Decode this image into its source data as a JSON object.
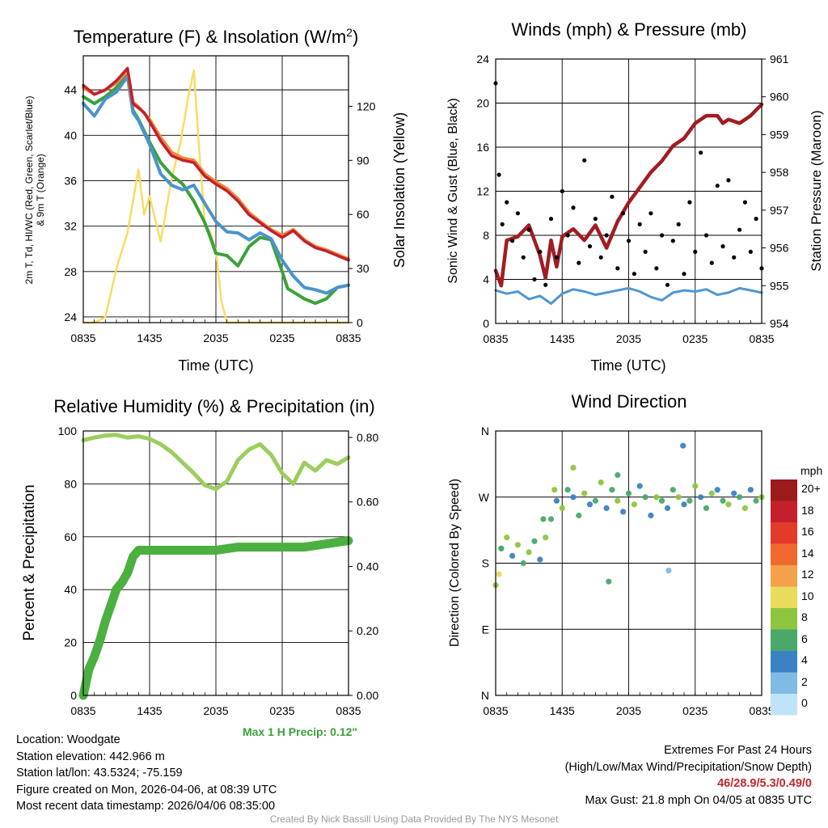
{
  "colors": {
    "temp": "#c4202c",
    "dew": "#3aa23a",
    "wc": "#4b93cc",
    "t9m": "#f08a3c",
    "solar": "#f7dd63",
    "wind": "#4f97d1",
    "gust": "#000000",
    "pressure": "#a11c22",
    "rh": "#9ccd5e",
    "precip": "#4bb040",
    "grid": "#000000",
    "credit": "#9a9a9a",
    "extremes": "#c0282c"
  },
  "x_tick_labels": [
    "0835",
    "1435",
    "2035",
    "0235",
    "0835"
  ],
  "xlabel_time": "Time (UTC)",
  "chart_data": [
    {
      "id": "temp",
      "type": "line",
      "title": "Temperature (F) & Insolation (W/m²)",
      "xlabel": "Time (UTC)",
      "ylabel": "2m T, Tᵈ, HI/WC (Red, Green, Scarlet/Blue) & 9m T (Orange)",
      "ylabel_line1": "2m T, Td, HI/WC (Red, Green, Scarlet/Blue)",
      "ylabel_line2": "& 9m T (Orange)",
      "ylabel_right": "Solar Insolation (Yellow)",
      "x_hours_range": [
        0,
        24
      ],
      "ylim": [
        23.5,
        47
      ],
      "yticks": [
        24,
        28,
        32,
        36,
        40,
        44
      ],
      "ylim_right": [
        0,
        148
      ],
      "yticks_right": [
        0,
        30,
        60,
        90,
        120
      ],
      "series": [
        {
          "name": "2m T",
          "color": "#c4202c",
          "x": [
            0,
            1,
            2,
            3,
            4,
            4.5,
            5,
            5.5,
            6,
            7,
            8,
            9,
            10,
            11,
            12,
            13,
            14,
            15,
            16,
            17,
            18,
            18.5,
            19,
            20,
            21,
            22,
            23,
            24
          ],
          "y": [
            44.4,
            43.6,
            44.0,
            44.8,
            45.9,
            42.8,
            42.4,
            42.0,
            41.2,
            39.5,
            38.2,
            37.8,
            37.6,
            36.4,
            35.7,
            35.1,
            34.2,
            33.0,
            32.3,
            31.6,
            31.0,
            31.3,
            31.6,
            30.7,
            30.1,
            29.8,
            29.4,
            29.0
          ]
        },
        {
          "name": "9m T",
          "color": "#f08a3c",
          "x": [
            0,
            1,
            2,
            3,
            4,
            4.5,
            5,
            6,
            7,
            8,
            9,
            10,
            11,
            12,
            13,
            14,
            15,
            16,
            17,
            18,
            19,
            20,
            21,
            22,
            23,
            24
          ],
          "y": [
            44.2,
            43.6,
            44.0,
            44.6,
            45.7,
            42.9,
            42.5,
            41.4,
            39.8,
            38.5,
            38.0,
            37.8,
            36.6,
            35.9,
            35.3,
            34.4,
            33.2,
            32.4,
            31.7,
            31.2,
            31.7,
            30.8,
            30.2,
            29.9,
            29.5,
            29.1
          ]
        },
        {
          "name": "Dewpoint",
          "color": "#3aa23a",
          "x": [
            0,
            1,
            2,
            3,
            4,
            4.5,
            5,
            6,
            7,
            8,
            9,
            10,
            11,
            11.5,
            12,
            13,
            14,
            15,
            16,
            17,
            18,
            18.5,
            19,
            20,
            21,
            22,
            23,
            24
          ],
          "y": [
            43.4,
            42.8,
            43.4,
            44.2,
            45.4,
            42.2,
            41.4,
            39.4,
            37.6,
            36.5,
            35.7,
            34.2,
            32.3,
            31.0,
            29.6,
            29.4,
            28.5,
            30.2,
            31.0,
            30.8,
            28.0,
            26.5,
            26.2,
            25.6,
            25.2,
            25.6,
            26.6,
            26.8
          ]
        },
        {
          "name": "Wind Chill",
          "color": "#4b93cc",
          "x": [
            0,
            1,
            2,
            3,
            4,
            4.5,
            5,
            6,
            7,
            8,
            9,
            10,
            11,
            12,
            13,
            14,
            15,
            16,
            17,
            18,
            19,
            20,
            21,
            22,
            23,
            24
          ],
          "y": [
            42.8,
            41.7,
            43.2,
            43.8,
            45.2,
            42.0,
            41.3,
            39.2,
            36.6,
            35.6,
            35.2,
            35.6,
            34.0,
            32.4,
            31.5,
            31.4,
            30.8,
            31.4,
            30.9,
            29.0,
            27.6,
            26.6,
            26.4,
            26.1,
            26.6,
            26.8
          ]
        },
        {
          "name": "Solar Insolation",
          "color": "#f7dd63",
          "axis": "right",
          "x": [
            0,
            1,
            2,
            3,
            4,
            5,
            5.5,
            6,
            7,
            8,
            8.8,
            9.5,
            10,
            10.5,
            11,
            11.5,
            12,
            12.5,
            13,
            14,
            15,
            24
          ],
          "y": [
            0,
            0,
            3,
            30,
            50,
            85,
            60,
            70,
            45,
            80,
            100,
            125,
            140,
            95,
            55,
            50,
            40,
            12,
            0,
            0,
            0,
            0
          ]
        }
      ]
    },
    {
      "id": "wind",
      "type": "line",
      "title": "Winds (mph) & Pressure (mb)",
      "xlabel": "Time (UTC)",
      "ylabel": "Sonic Wind & Gust (Blue, Black)",
      "ylabel_right": "Station Pressure (Maroon)",
      "x_hours_range": [
        0,
        24
      ],
      "ylim": [
        0,
        24
      ],
      "yticks": [
        0,
        4,
        8,
        12,
        16,
        20,
        24
      ],
      "ylim_right": [
        954,
        961
      ],
      "yticks_right": [
        954,
        955,
        956,
        957,
        958,
        959,
        960,
        961
      ],
      "series": [
        {
          "name": "Sonic Wind",
          "color": "#4f97d1",
          "x": [
            0,
            1,
            2,
            3,
            4,
            5,
            6,
            7,
            8,
            9,
            10,
            11,
            12,
            13,
            14,
            15,
            16,
            17,
            18,
            19,
            20,
            21,
            22,
            23,
            24
          ],
          "y": [
            3.0,
            2.7,
            2.9,
            2.2,
            2.5,
            1.8,
            2.7,
            3.1,
            2.9,
            2.6,
            2.8,
            3.0,
            3.2,
            2.9,
            2.4,
            2.1,
            2.8,
            3.0,
            2.9,
            3.1,
            2.6,
            2.8,
            3.2,
            3.0,
            2.8
          ]
        },
        {
          "name": "Gust",
          "color": "#000000",
          "style": "dots",
          "x": [
            0,
            0.3,
            0.6,
            1,
            1.5,
            2,
            2.5,
            3,
            3.5,
            4,
            4.5,
            5,
            5.5,
            6,
            6.5,
            7,
            7.5,
            8,
            8.5,
            9,
            9.5,
            10,
            10.5,
            11,
            11.5,
            12,
            12.5,
            13,
            13.5,
            14,
            14.5,
            15,
            15.5,
            16,
            16.5,
            17,
            17.5,
            18,
            18.5,
            19,
            19.5,
            20,
            20.5,
            21,
            21.5,
            22,
            22.5,
            23,
            23.5,
            24
          ],
          "y": [
            21.8,
            13.5,
            9.0,
            11.0,
            7.5,
            10.0,
            6.0,
            8.5,
            4.0,
            6.5,
            3.5,
            9.5,
            6.0,
            12.0,
            8.0,
            10.5,
            5.5,
            14.8,
            7.0,
            9.5,
            6.0,
            8.0,
            11.5,
            5.0,
            10.0,
            7.5,
            4.5,
            9.0,
            6.5,
            10.0,
            5.0,
            8.0,
            3.5,
            7.5,
            9.0,
            4.5,
            11.0,
            6.5,
            15.5,
            8.0,
            5.5,
            12.5,
            7.0,
            13.0,
            6.0,
            8.5,
            11.0,
            6.5,
            9.5,
            5.0
          ]
        },
        {
          "name": "Station Pressure",
          "color": "#a11c22",
          "axis": "right",
          "x": [
            0,
            0.5,
            1,
            2,
            3,
            4,
            4.5,
            5,
            5.5,
            6,
            7,
            8,
            9,
            10,
            11,
            12,
            13,
            14,
            15,
            16,
            17,
            18,
            19,
            20,
            20.5,
            21,
            22,
            23,
            24
          ],
          "y": [
            955.4,
            955.0,
            956.2,
            956.3,
            956.6,
            955.8,
            955.2,
            956.2,
            955.5,
            956.3,
            956.5,
            956.2,
            956.6,
            956.0,
            956.7,
            957.2,
            957.6,
            958.0,
            958.3,
            958.7,
            958.9,
            959.3,
            959.5,
            959.5,
            959.3,
            959.4,
            959.3,
            959.5,
            959.8
          ]
        }
      ]
    },
    {
      "id": "rh",
      "type": "line",
      "title": "Relative Humidity (%) & Precipitation (in)",
      "ylabel": "Percent & Precipitation",
      "x_hours_range": [
        0,
        24
      ],
      "ylim": [
        0,
        100
      ],
      "yticks": [
        0,
        20,
        40,
        60,
        80,
        100
      ],
      "ylim_right": [
        0,
        0.82
      ],
      "yticks_right": [
        0.0,
        0.2,
        0.4,
        0.6,
        0.8
      ],
      "ytick_labels_right": [
        "0.00",
        "0.20",
        "0.40",
        "0.60",
        "0.80"
      ],
      "series": [
        {
          "name": "Relative Humidity",
          "color": "#9ccd5e",
          "x": [
            0,
            1,
            2,
            3,
            4,
            5,
            6,
            7,
            8,
            9,
            10,
            11,
            12,
            13,
            14,
            15,
            16,
            17,
            18,
            19,
            20,
            21,
            22,
            23,
            24
          ],
          "y": [
            96.5,
            97.5,
            98.3,
            98.5,
            97.5,
            98.0,
            97.0,
            95.0,
            92.0,
            88.0,
            84.0,
            79.5,
            78.0,
            81.0,
            89.0,
            93.0,
            95.0,
            91.0,
            84.0,
            80.0,
            88.0,
            85.0,
            89.0,
            87.5,
            90.0
          ]
        },
        {
          "name": "Precipitation",
          "color": "#4bb040",
          "axis": "right",
          "x": [
            0,
            0.5,
            1,
            1.5,
            2,
            2.5,
            3,
            3.5,
            4,
            4.5,
            5,
            6,
            8,
            10,
            12,
            14,
            16,
            18,
            20,
            22,
            24
          ],
          "y": [
            0.0,
            0.08,
            0.12,
            0.17,
            0.23,
            0.28,
            0.33,
            0.35,
            0.38,
            0.43,
            0.45,
            0.45,
            0.45,
            0.45,
            0.45,
            0.46,
            0.46,
            0.46,
            0.46,
            0.47,
            0.48
          ]
        }
      ]
    },
    {
      "id": "wdir",
      "type": "scatter",
      "title": "Wind Direction",
      "ylabel": "Direction (Colored By Speed)",
      "x_hours_range": [
        0,
        24
      ],
      "ylim": [
        0,
        360
      ],
      "yticks": [
        0,
        90,
        180,
        270,
        360
      ],
      "ytick_labels": [
        "N",
        "E",
        "S",
        "W",
        "N"
      ],
      "legend_unit": "mph",
      "legend_labels": [
        "20+",
        "18",
        "16",
        "14",
        "12",
        "10",
        "8",
        "6",
        "4",
        "2",
        "0"
      ],
      "legend_colors": [
        "#9b1b1b",
        "#c4202c",
        "#e33a2b",
        "#f06a30",
        "#f5a04a",
        "#e7dc5b",
        "#8cc63f",
        "#4aa86a",
        "#3b82c4",
        "#7fbbe5",
        "#bfe4f7"
      ],
      "series": [
        {
          "name": "Direction",
          "x": [
            0,
            0.3,
            0.5,
            1,
            1.5,
            2,
            2.5,
            3,
            3.5,
            4,
            4.5,
            5,
            5.5,
            6,
            6.5,
            7,
            7.5,
            8,
            8.5,
            9,
            9.5,
            10,
            10.5,
            11,
            11.5,
            12,
            12.5,
            13,
            13.5,
            14,
            14.5,
            15,
            15.5,
            16,
            16.5,
            17,
            17.5,
            18,
            18.5,
            19,
            19.5,
            20,
            20.5,
            21,
            21.5,
            22,
            22.5,
            23,
            23.5,
            24
          ],
          "y": [
            150,
            165,
            200,
            215,
            190,
            205,
            180,
            195,
            210,
            185,
            215,
            240,
            265,
            255,
            280,
            270,
            245,
            275,
            260,
            265,
            290,
            255,
            280,
            265,
            250,
            275,
            260,
            285,
            270,
            245,
            270,
            265,
            255,
            280,
            270,
            260,
            265,
            285,
            270,
            255,
            275,
            280,
            265,
            260,
            275,
            270,
            255,
            280,
            265,
            270
          ],
          "speed": [
            4,
            5,
            3,
            4,
            2,
            4,
            3,
            4,
            3,
            2,
            4,
            3,
            2,
            4,
            3,
            2,
            3,
            4,
            2,
            3,
            4,
            2,
            3,
            4,
            2,
            3,
            4,
            2,
            3,
            2,
            4,
            3,
            2,
            3,
            4,
            2,
            3,
            4,
            2,
            3,
            4,
            2,
            3,
            4,
            2,
            3,
            4,
            2,
            3,
            4
          ]
        },
        {
          "name": "Outliers",
          "x": [
            0.5,
            4.3,
            5.3,
            7.0,
            10.2,
            11.0,
            15.6,
            16.9
          ],
          "y": [
            200,
            240,
            280,
            310,
            155,
            300,
            170,
            340
          ],
          "speed": [
            3,
            3,
            4,
            4,
            3,
            3,
            1,
            2
          ]
        }
      ]
    }
  ],
  "max_precip_text": "Max 1 H Precip: 0.12\"",
  "footer": {
    "location": "Location: Woodgate",
    "elevation": "Station elevation: 442.966 m",
    "latlon": "Station lat/lon: 43.5324; -75.159",
    "created": "Figure created on Mon, 2026-04-06, at 08:39 UTC",
    "recent": "Most recent data timestamp: 2026/04/06 08:35:00",
    "extremes_title": "Extremes For Past 24 Hours",
    "extremes_sub": "(High/Low/Max Wind/Precipitation/Snow Depth)",
    "extremes_values": "46/28.9/5.3/0.49/0",
    "max_gust": "Max Gust: 21.8 mph On 04/05 at 0835 UTC",
    "credit": "Created By Nick Bassill Using Data Provided By The NYS Mesonet"
  }
}
